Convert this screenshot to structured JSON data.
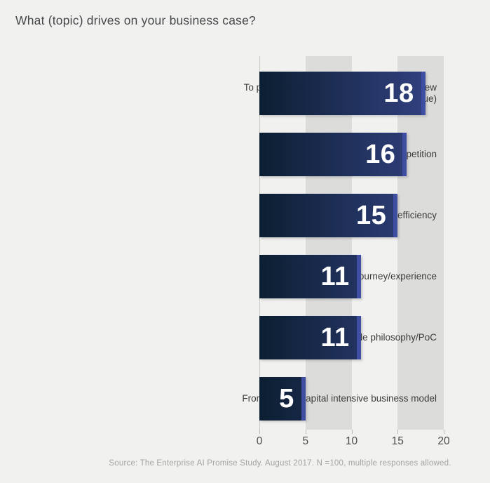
{
  "title": "What (topic) drives on your business case?",
  "source": "Source: The Enterprise AI Promise Study. August 2017. N =100, multiple responses allowed.",
  "colors": {
    "background": "#f1f1ef",
    "grid_band": "#dcdcda",
    "bar_gradient_start": "#0c1e31",
    "bar_gradient_end": "#354487",
    "bar_edge_highlight": "#3f4ea1",
    "value_label": "#ffffff",
    "title_text": "#45484a",
    "category_text": "#3c3c3c",
    "tick_text": "#4b4b4b",
    "source_text": "#a3a3a1"
  },
  "chart_data": {
    "type": "bar",
    "orientation": "horizontal",
    "title": "What (topic) drives on your business case?",
    "categories": [
      "To provide growth potential (new product, new market segment, increased revenue)",
      "To keep up with competition",
      "To provide cost savings through efficiency",
      "Improve customer journey/experience",
      "To experiment/fail/agile philosophy/PoC",
      "From labor to capital intensive business model"
    ],
    "values": [
      18,
      16,
      15,
      11,
      11,
      5
    ],
    "value_labels": [
      "18",
      "16",
      "15",
      "11",
      "11",
      "5"
    ],
    "xlabel": "",
    "ylabel": "",
    "xlim": [
      0,
      20
    ],
    "x_ticks": [
      0,
      5,
      10,
      15,
      20
    ],
    "shaded_bands": [
      [
        5,
        10
      ],
      [
        15,
        20
      ]
    ],
    "grid": false,
    "legend": false,
    "value_label_position": "inside-right"
  }
}
